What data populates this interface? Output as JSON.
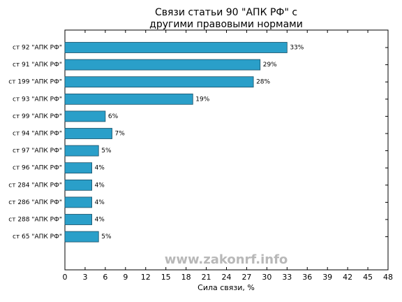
{
  "chart_data": {
    "type": "barh",
    "title": [
      "Связи статьи 90 \"АПК РФ\" с",
      "другими правовыми нормами"
    ],
    "xlabel": "Сила связи, %",
    "watermark": "www.zakonrf.info",
    "categories": [
      "ст 92 \"АПК РФ\"",
      "ст 91 \"АПК РФ\"",
      "ст 199 \"АПК РФ\"",
      "ст 93 \"АПК РФ\"",
      "ст 99 \"АПК РФ\"",
      "ст 94 \"АПК РФ\"",
      "ст 97 \"АПК РФ\"",
      "ст 96 \"АПК РФ\"",
      "ст 284 \"АПК РФ\"",
      "ст 286 \"АПК РФ\"",
      "ст 288 \"АПК РФ\"",
      "ст 65 \"АПК РФ\""
    ],
    "values": [
      33,
      29,
      28,
      19,
      6,
      7,
      5,
      4,
      4,
      4,
      4,
      5
    ],
    "value_labels": [
      "33%",
      "29%",
      "28%",
      "19%",
      "6%",
      "7%",
      "5%",
      "4%",
      "4%",
      "4%",
      "4%",
      "5%"
    ],
    "color": "#2a9fc9",
    "xlim": [
      0,
      48
    ],
    "xticks": [
      0,
      3,
      6,
      9,
      12,
      15,
      18,
      21,
      24,
      27,
      30,
      33,
      36,
      39,
      42,
      45,
      48
    ]
  }
}
